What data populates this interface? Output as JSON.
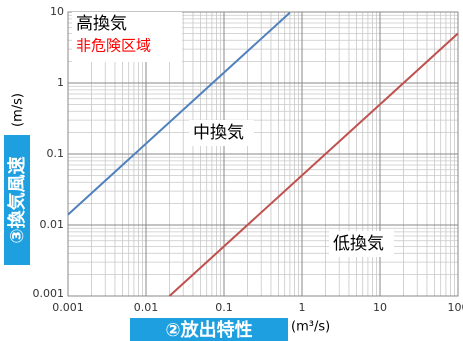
{
  "chart_data": {
    "type": "line",
    "log_x": true,
    "log_y": true,
    "xlim": [
      0.001,
      100
    ],
    "ylim": [
      0.001,
      10
    ],
    "xticks": [
      0.001,
      0.01,
      0.1,
      1,
      10,
      100
    ],
    "yticks": [
      0.001,
      0.01,
      0.1,
      1,
      10
    ],
    "grid": true,
    "x_label": "②放出特性",
    "x_unit": "(m³/s)",
    "y_label": "③換気風速",
    "y_unit": "(m/s)",
    "series": [
      {
        "x": [
          0.001,
          0.7
        ],
        "values": [
          0.014,
          9.8
        ],
        "color": "#4f81bd"
      },
      {
        "x": [
          0.02,
          100
        ],
        "values": [
          0.001,
          5
        ],
        "color": "#c0504d"
      }
    ],
    "annotations": [
      {
        "text": "高換気",
        "color": "#000000"
      },
      {
        "text": "非危険区域",
        "color": "#ff0000"
      },
      {
        "text": "中換気",
        "color": "#000000"
      },
      {
        "text": "低換気",
        "color": "#000000"
      }
    ]
  }
}
